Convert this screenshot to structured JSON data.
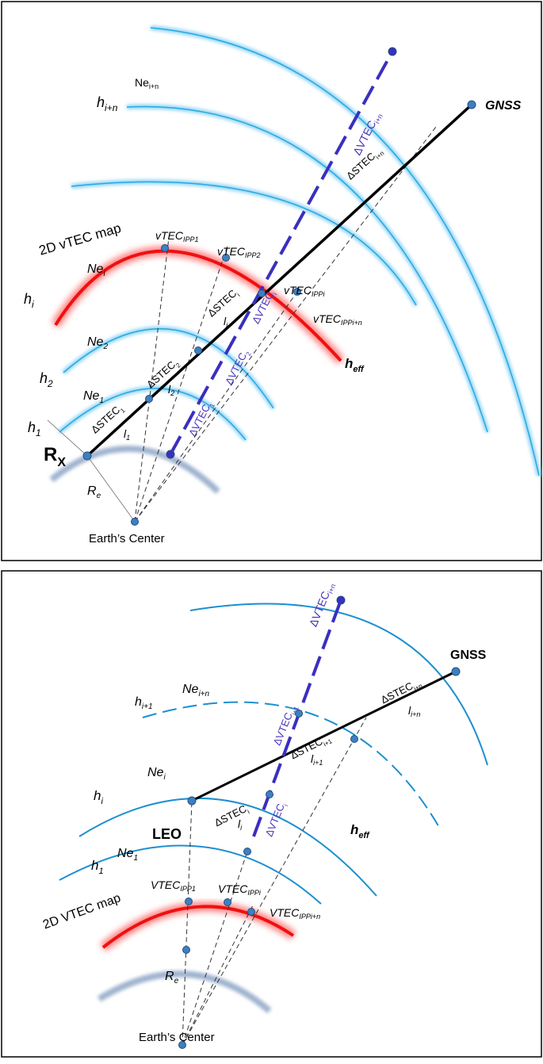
{
  "top": {
    "labels": [
      {
        "text": "Ne",
        "sub": "i+n"
      },
      {
        "text": "h",
        "sub": "i+n"
      },
      {
        "text": "GNSS"
      },
      {
        "text": "ΔVTEC",
        "sub": "i+n"
      },
      {
        "text": "ΔSTEC",
        "sub": "i+n"
      },
      {
        "text": "2D vTEC map"
      },
      {
        "text": "vTEC",
        "sub": "IPP1"
      },
      {
        "text": "vTEC",
        "sub": "IPP2"
      },
      {
        "text": "h",
        "sub": "i"
      },
      {
        "text": "Ne",
        "sub": "i"
      },
      {
        "text": "ΔSTEC",
        "sub": "i"
      },
      {
        "text": "vTEC",
        "sub": "IPPi"
      },
      {
        "text": "vTEC",
        "sub": "IPPi+n"
      },
      {
        "text": "l",
        "sub": "i"
      },
      {
        "text": "ΔVTEC",
        "sub": "i"
      },
      {
        "text": "Ne",
        "sub": "2"
      },
      {
        "text": "ΔSTEC",
        "sub": "2"
      },
      {
        "text": "h",
        "sub": "eff"
      },
      {
        "text": "h",
        "sub": "2"
      },
      {
        "text": "ΔVTEC",
        "sub": "2"
      },
      {
        "text": "Ne",
        "sub": "1"
      },
      {
        "text": "l",
        "sub": "2"
      },
      {
        "text": "h",
        "sub": "1"
      },
      {
        "text": "ΔSTEC",
        "sub": "1"
      },
      {
        "text": "l",
        "sub": "1"
      },
      {
        "text": "ΔVTEC",
        "sub": "1"
      },
      {
        "text": "R",
        "sub": "X"
      },
      {
        "text": "R",
        "sub": "e"
      },
      {
        "text": "Earth’s Center"
      }
    ]
  },
  "bottom": {
    "labels": [
      {
        "text": "ΔVTEC",
        "sub": "i+n"
      },
      {
        "text": "GNSS"
      },
      {
        "text": "Ne",
        "sub": "i+n"
      },
      {
        "text": "h",
        "sub": "i+1"
      },
      {
        "text": "ΔSTEC",
        "sub": "i+n"
      },
      {
        "text": "l",
        "sub": "i+n"
      },
      {
        "text": "ΔVTEC",
        "sub": "i+1"
      },
      {
        "text": "ΔSTEC",
        "sub": "i+1"
      },
      {
        "text": "l",
        "sub": "i+1"
      },
      {
        "text": "Ne",
        "sub": "i"
      },
      {
        "text": "h",
        "sub": "i"
      },
      {
        "text": "ΔSTEC",
        "sub": "i"
      },
      {
        "text": "l",
        "sub": "i"
      },
      {
        "text": "ΔVTEC",
        "sub": "i"
      },
      {
        "text": "h",
        "sub": "eff"
      },
      {
        "text": "LEO"
      },
      {
        "text": "Ne",
        "sub": "1"
      },
      {
        "text": "h",
        "sub": "1"
      },
      {
        "text": "VTEC",
        "sub": "IPP1"
      },
      {
        "text": "VTEC",
        "sub": "IPPi"
      },
      {
        "text": "VTEC",
        "sub": "IPPi+n"
      },
      {
        "text": "2D VTEC map"
      },
      {
        "text": "R",
        "sub": "e"
      },
      {
        "text": "Earth’s Center"
      }
    ]
  }
}
